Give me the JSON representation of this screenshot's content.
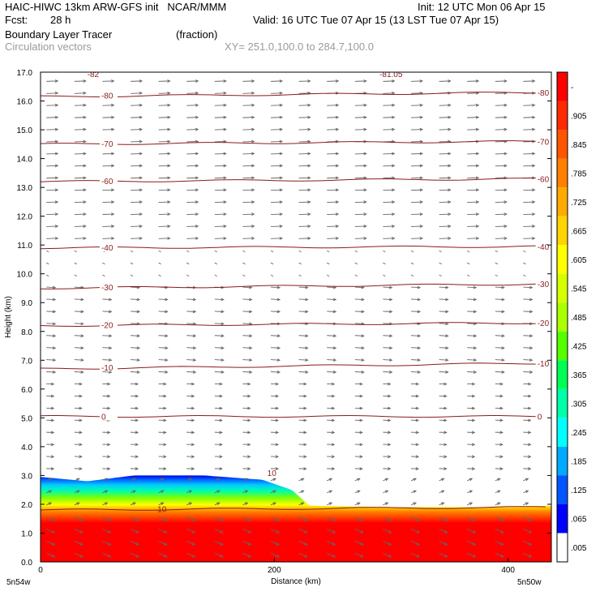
{
  "header": {
    "title": "HAIC-HIWC 13km ARW-GFS init   NCAR/MMM",
    "fcst_label": "Fcst:",
    "fcst_value": "28 h",
    "init": "Init: 12 UTC Mon 06 Apr 15",
    "valid": "Valid: 16 UTC Tue 07 Apr 15 (13 LST Tue 07 Apr 15)",
    "field_name": "Boundary Layer Tracer",
    "field_units": "(fraction)",
    "vector_label": "Circulation vectors",
    "cross_section": "XY= 251.0,100.0 to 284.7,100.0"
  },
  "chart_data": {
    "type": "heatmap",
    "xlabel": "Distance (km)",
    "ylabel": "Height (km)",
    "xlim": [
      0,
      437
    ],
    "ylim": [
      0,
      17
    ],
    "x_ticks": [
      "0",
      "200",
      "400"
    ],
    "y_ticks": [
      "0.0",
      "1.0",
      "2.0",
      "3.0",
      "4.0",
      "5.0",
      "6.0",
      "7.0",
      "8.0",
      "9.0",
      "10.0",
      "11.0",
      "12.0",
      "13.0",
      "14.0",
      "15.0",
      "16.0",
      "17.0"
    ],
    "x_end_labels": {
      "left": "5n54w",
      "right": "5n50w"
    },
    "colorbar_labels": [
      "-",
      ".905",
      ".845",
      ".785",
      ".725",
      ".665",
      ".605",
      ".545",
      ".485",
      ".425",
      ".365",
      ".305",
      ".245",
      ".185",
      ".125",
      ".065",
      ".005"
    ],
    "colorbar_colors": [
      "#ff0000",
      "#ff2a00",
      "#ff5500",
      "#ff8000",
      "#ffaa00",
      "#ffd400",
      "#ffff00",
      "#d4ff00",
      "#aaff00",
      "#55ff00",
      "#00ff55",
      "#00ffaa",
      "#00ffff",
      "#00aaff",
      "#0055ff",
      "#0000ff",
      "#ffffff"
    ],
    "tracer_top_profile": {
      "x": [
        0,
        40,
        80,
        140,
        190,
        215,
        230,
        300,
        360,
        400,
        437
      ],
      "z": [
        2.95,
        2.8,
        3.0,
        3.0,
        2.85,
        2.5,
        1.95,
        1.9,
        1.9,
        1.9,
        1.95
      ]
    },
    "temperature_contours": [
      {
        "label": "10",
        "z_left": 1.8,
        "z_right": 1.9
      },
      {
        "label": "0",
        "z_left": 5.05,
        "z_right": 5.05
      },
      {
        "label": "-10",
        "z_left": 6.7,
        "z_right": 6.9
      },
      {
        "label": "-20",
        "z_left": 8.2,
        "z_right": 8.3
      },
      {
        "label": "-30",
        "z_left": 9.5,
        "z_right": 9.65
      },
      {
        "label": "-40",
        "z_left": 10.9,
        "z_right": 10.95
      },
      {
        "label": "-60",
        "z_left": 13.2,
        "z_right": 13.3
      },
      {
        "label": "-70",
        "z_left": 14.5,
        "z_right": 14.6
      },
      {
        "label": "-80",
        "z_left": 16.15,
        "z_right": 16.3
      }
    ],
    "contour_label_extras": [
      "10",
      "0",
      "-10",
      "-20",
      "-30",
      "-40",
      "-60",
      "-70",
      "-80"
    ],
    "top_clipped_labels": [
      "-82",
      "-81.05"
    ]
  },
  "colors": {
    "contour": "#8b1a1a",
    "vector": "#666666",
    "axis": "#000000"
  }
}
